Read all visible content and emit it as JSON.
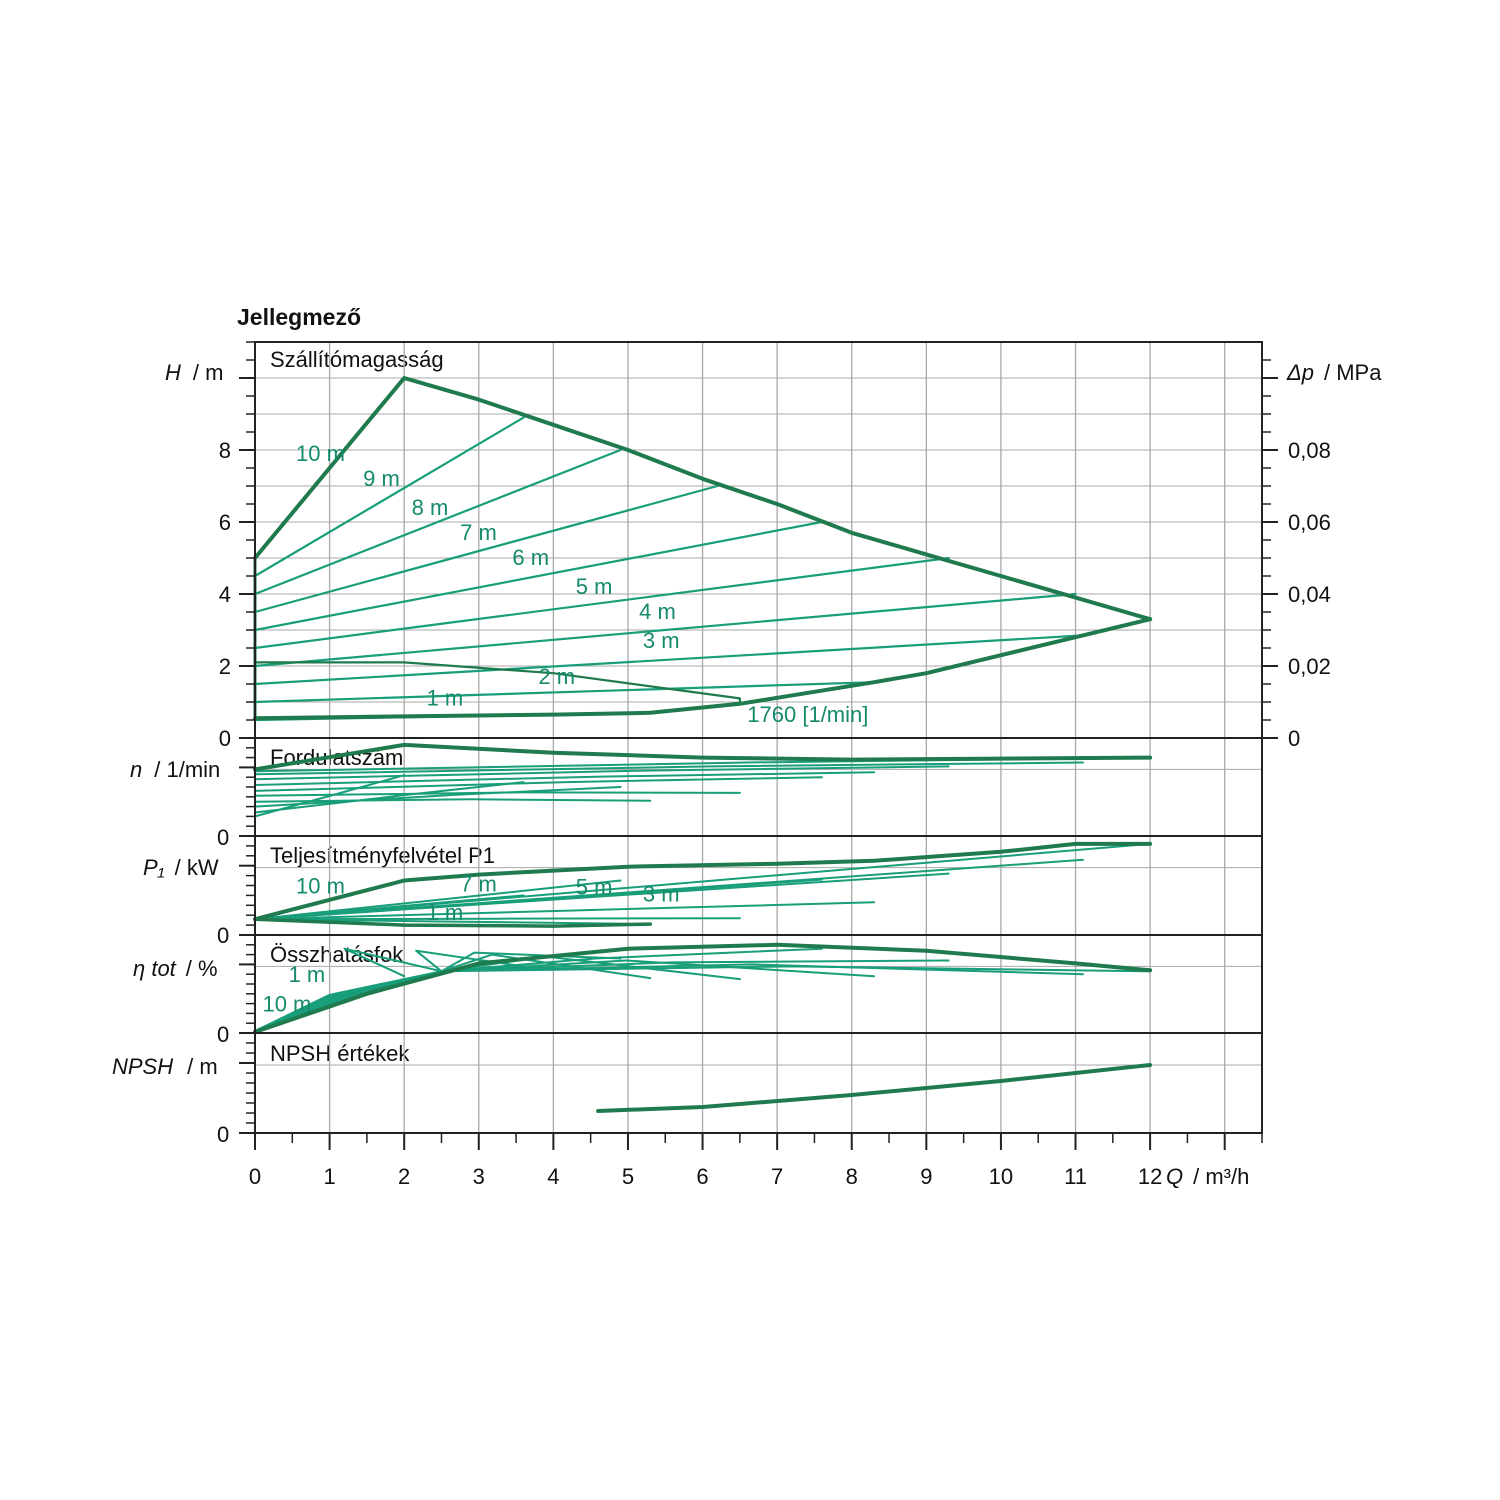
{
  "title": "Jellegmező",
  "colors": {
    "envelope": "#1f7a4d",
    "curves": "#199e7a",
    "labels": "#168a6c",
    "grid": "#a9a9a9",
    "frame": "#222222"
  },
  "x_axis": {
    "label": "Q",
    "unit": "/ m³/h",
    "range": [
      0,
      13.5
    ],
    "ticks": [
      "0",
      "1",
      "2",
      "3",
      "4",
      "5",
      "6",
      "7",
      "8",
      "9",
      "10",
      "11",
      "12"
    ]
  },
  "panels": {
    "head": {
      "title": "Szállítómagasság",
      "y_label": "H",
      "y_unit": "/ m",
      "y_range": [
        0,
        11
      ],
      "y_ticks": [
        "0",
        "2",
        "4",
        "6",
        "8"
      ],
      "right_label": "Δp",
      "right_unit": "/ MPa",
      "right_ticks": [
        "0",
        "0,02",
        "0,04",
        "0,06",
        "0,08"
      ]
    },
    "speed": {
      "title": "Fordulatszám",
      "y_label": "n",
      "y_unit": "/ 1/min",
      "y_zero": "0"
    },
    "power": {
      "title": "Teljesítményfelvétel P1",
      "y_label": "P₁",
      "y_unit": "/ kW",
      "y_zero": "0"
    },
    "efficiency": {
      "title": "Összhatásfok",
      "y_label": "η tot",
      "y_unit": "/ %",
      "y_zero": "0"
    },
    "npsh": {
      "title": "NPSH értékek",
      "y_label": "NPSH",
      "y_unit": "/ m",
      "y_zero": "0"
    }
  },
  "chart_data": {
    "type": "line",
    "title": "Jellegmező",
    "xlabel": "Q / m³/h",
    "ylabel": "H / m",
    "xlim": [
      0,
      13.5
    ],
    "ylim": [
      0,
      11
    ],
    "grid": true,
    "head_envelope": {
      "max_curve": [
        [
          0,
          5.0
        ],
        [
          2,
          10.0
        ],
        [
          3,
          9.4
        ],
        [
          4,
          8.7
        ],
        [
          5,
          8.0
        ],
        [
          6,
          7.2
        ],
        [
          7,
          6.5
        ],
        [
          8,
          5.7
        ],
        [
          9,
          5.1
        ],
        [
          10,
          4.5
        ],
        [
          11,
          3.9
        ],
        [
          12,
          3.3
        ]
      ],
      "min_curve": [
        [
          0,
          0.55
        ],
        [
          2,
          0.6
        ],
        [
          4,
          0.65
        ],
        [
          5.3,
          0.7
        ],
        [
          6.5,
          0.95
        ],
        [
          8.3,
          1.55
        ],
        [
          9,
          1.8
        ],
        [
          11,
          2.8
        ],
        [
          12,
          3.3
        ]
      ]
    },
    "head_constant_lines": [
      {
        "name": "10 m",
        "points": [
          [
            0,
            5.0
          ],
          [
            2,
            10.0
          ]
        ]
      },
      {
        "name": "9 m",
        "points": [
          [
            0,
            4.5
          ],
          [
            3.6,
            8.9
          ]
        ]
      },
      {
        "name": "8 m",
        "points": [
          [
            0,
            4.0
          ],
          [
            4.9,
            8.0
          ]
        ]
      },
      {
        "name": "7 m",
        "points": [
          [
            0,
            3.5
          ],
          [
            6.2,
            7.0
          ]
        ]
      },
      {
        "name": "6 m",
        "points": [
          [
            0,
            3.0
          ],
          [
            7.6,
            6.0
          ]
        ]
      },
      {
        "name": "5 m",
        "points": [
          [
            0,
            2.5
          ],
          [
            9.3,
            5.0
          ]
        ]
      },
      {
        "name": "4 m",
        "points": [
          [
            0,
            2.0
          ],
          [
            11.0,
            4.0
          ]
        ]
      },
      {
        "name": "3 m",
        "points": [
          [
            0,
            1.5
          ],
          [
            11.1,
            2.85
          ]
        ]
      },
      {
        "name": "2 m",
        "points": [
          [
            0,
            1.0
          ],
          [
            8.3,
            1.55
          ]
        ]
      },
      {
        "name": "1 m",
        "points": [
          [
            0,
            0.5
          ],
          [
            5.3,
            0.7
          ]
        ]
      }
    ],
    "speed_curve": {
      "name": "1760 [1/min]",
      "points": [
        [
          0,
          2.1
        ],
        [
          2,
          2.1
        ],
        [
          4,
          1.8
        ],
        [
          6.5,
          1.1
        ],
        [
          6.5,
          0.95
        ]
      ]
    },
    "npsh_curve": [
      [
        4.6,
        0.55
      ],
      [
        6,
        0.65
      ],
      [
        8,
        0.95
      ],
      [
        10,
        1.3
      ],
      [
        12,
        1.7
      ]
    ]
  },
  "curve_labels": {
    "head": [
      "10 m",
      "9 m",
      "8 m",
      "7 m",
      "6 m",
      "5 m",
      "4 m",
      "3 m",
      "2 m",
      "1 m",
      "1760 [1/min]"
    ],
    "power": [
      "10 m",
      "7 m",
      "5 m",
      "3 m",
      "1 m"
    ],
    "efficiency": [
      "1 m",
      "10 m"
    ]
  }
}
